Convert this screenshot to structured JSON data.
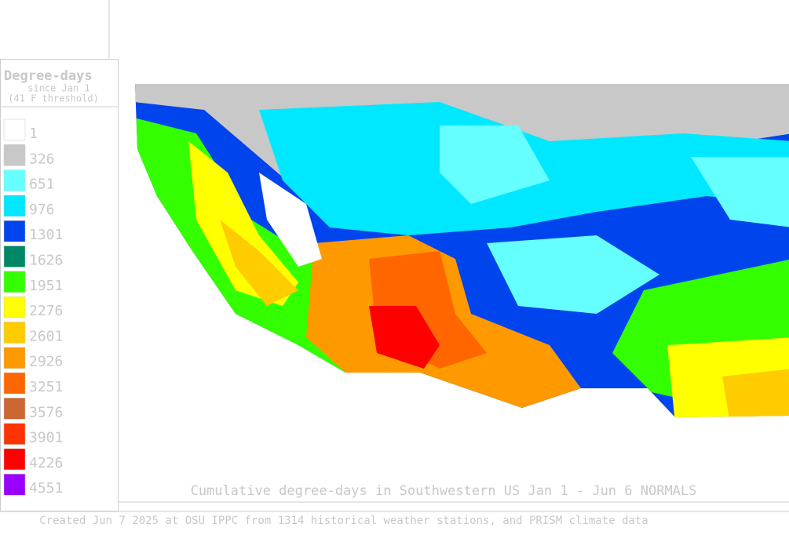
{
  "legend": {
    "title": "Degree-days",
    "subtitle": [
      "since Jan 1",
      "(41 F threshold)"
    ],
    "items": [
      {
        "label": "1",
        "color": "#ffffff"
      },
      {
        "label": "326",
        "color": "#c8c8c8"
      },
      {
        "label": "651",
        "color": "#66ffff"
      },
      {
        "label": "976",
        "color": "#00e8ff"
      },
      {
        "label": "1301",
        "color": "#0044ee"
      },
      {
        "label": "1626",
        "color": "#008866"
      },
      {
        "label": "1951",
        "color": "#33ff00"
      },
      {
        "label": "2276",
        "color": "#ffff00"
      },
      {
        "label": "2601",
        "color": "#ffcc00"
      },
      {
        "label": "2926",
        "color": "#ff9900"
      },
      {
        "label": "3251",
        "color": "#ff6600"
      },
      {
        "label": "3576",
        "color": "#cc6633"
      },
      {
        "label": "3901",
        "color": "#ff3300"
      },
      {
        "label": "4226",
        "color": "#ff0000"
      },
      {
        "label": "4551",
        "color": "#9900ff"
      }
    ]
  },
  "caption": "Cumulative degree-days in Southwestern US Jan 1 - Jun 6 NORMALS",
  "footer": "Created Jun 7 2025 at OSU IPPC from 1314 historical weather stations, and PRISM climate data"
}
